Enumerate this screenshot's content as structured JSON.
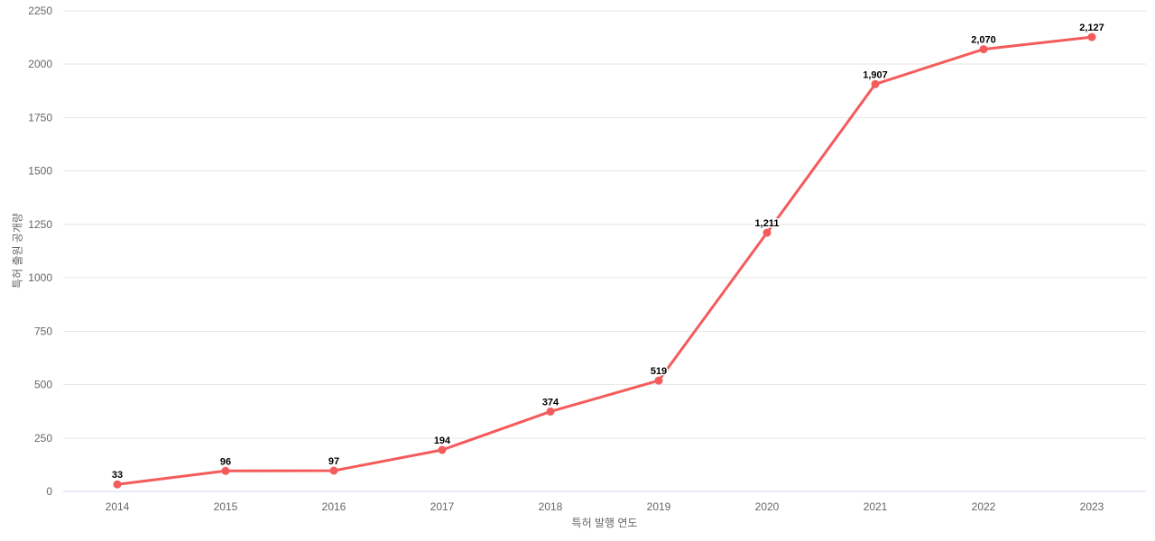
{
  "chart_data": {
    "type": "line",
    "categories": [
      "2014",
      "2015",
      "2016",
      "2017",
      "2018",
      "2019",
      "2020",
      "2021",
      "2022",
      "2023"
    ],
    "series": [
      {
        "name": "특허 출원 공개량",
        "values": [
          33,
          96,
          97,
          194,
          374,
          519,
          1211,
          1907,
          2070,
          2127
        ],
        "labels": [
          "33",
          "96",
          "97",
          "194",
          "374",
          "519",
          "1,211",
          "1,907",
          "2,070",
          "2,127"
        ]
      }
    ],
    "title": "",
    "xlabel": "특허 발행 연도",
    "ylabel": "특허 출원 공개량",
    "ylim": [
      0,
      2250
    ],
    "ytick_step": 250,
    "grid": true,
    "legend": "none",
    "colors": {
      "line": "#f45b5b",
      "marker": "#f45b5b",
      "gridline": "#e6e6e6",
      "axis_line": "#ccd6eb",
      "tick_label": "#666666",
      "axis_title": "#666666",
      "data_label": "#000000",
      "background": "#ffffff"
    }
  }
}
